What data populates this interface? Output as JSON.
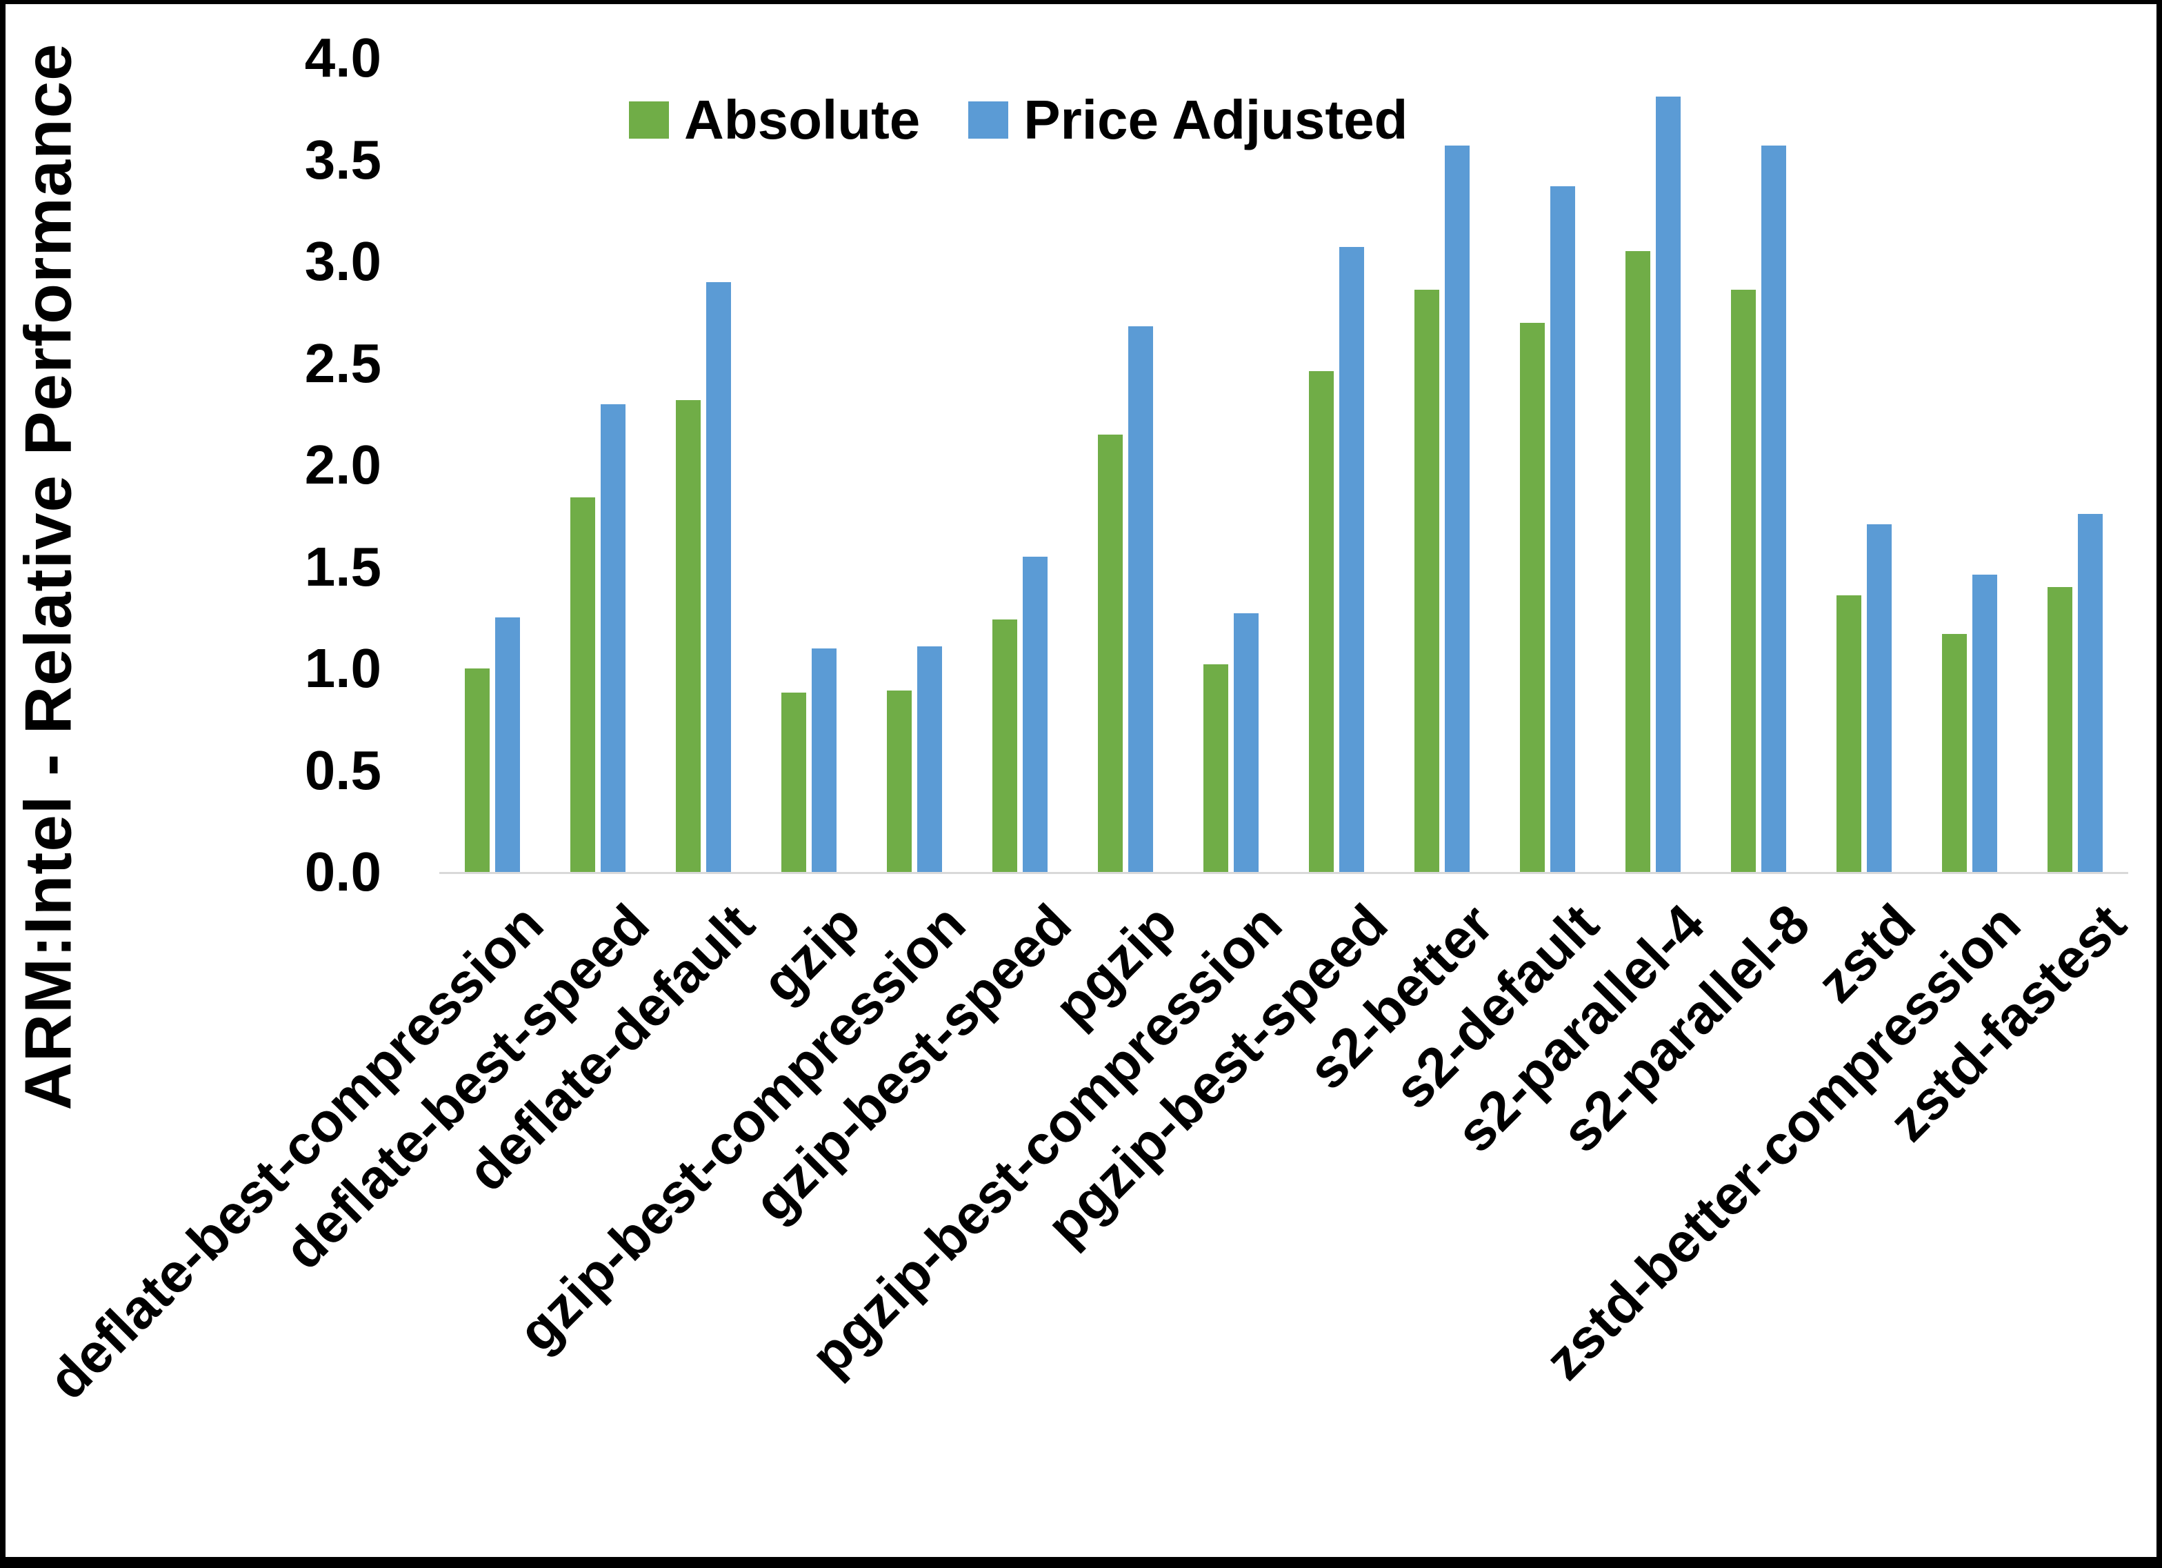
{
  "figure": {
    "background": "#ffffff",
    "frame_color": "#000000",
    "axis_line_color": "#d9d9d9"
  },
  "legend": {
    "items": [
      {
        "label": "Absolute",
        "color": "#70AD47"
      },
      {
        "label": "Price Adjusted",
        "color": "#5B9BD5"
      }
    ]
  },
  "y_axis": {
    "title": "ARM:Intel - Relative Performance",
    "tick_labels": [
      "0.0",
      "0.5",
      "1.0",
      "1.5",
      "2.0",
      "2.5",
      "3.0",
      "3.5",
      "4.0"
    ]
  },
  "chart_data": {
    "type": "bar",
    "title": "",
    "xlabel": "",
    "ylabel": "ARM:Intel - Relative Performance",
    "ylim": [
      0,
      4
    ],
    "ytick_step": 0.5,
    "grid": false,
    "legend_position": "top-center",
    "categories": [
      "deflate-best-compression",
      "deflate-best-speed",
      "deflate-default",
      "gzip",
      "gzip-best-compression",
      "gzip-best-speed",
      "pgzip",
      "pgzip-best-compression",
      "pgzip-best-speed",
      "s2-better",
      "s2-default",
      "s2-parallel-4",
      "s2-parallel-8",
      "zstd",
      "zstd-better-compression",
      "zstd-fastest"
    ],
    "series": [
      {
        "name": "Absolute",
        "color": "#70AD47",
        "values": [
          1.0,
          1.84,
          2.32,
          0.88,
          0.89,
          1.24,
          2.15,
          1.02,
          2.46,
          2.86,
          2.7,
          3.05,
          2.86,
          1.36,
          1.17,
          1.4
        ]
      },
      {
        "name": "Price Adjusted",
        "color": "#5B9BD5",
        "values": [
          1.25,
          2.3,
          2.9,
          1.1,
          1.11,
          1.55,
          2.68,
          1.27,
          3.07,
          3.57,
          3.37,
          3.81,
          3.57,
          1.71,
          1.46,
          1.76
        ]
      }
    ]
  }
}
